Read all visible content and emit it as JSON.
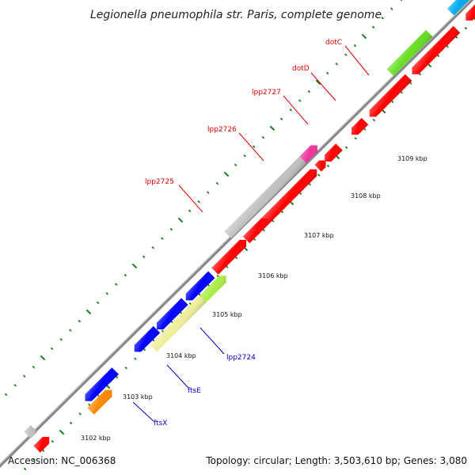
{
  "map": {
    "title": "Legionella pneumophila str. Paris, complete genome",
    "accession": "Accession: NC_006368",
    "topology": "Topology: circular; Length: 3,503,610 bp; Genes: 3,080"
  },
  "colors": {
    "backbone": "#808080",
    "tick": "#1a7a1a",
    "label_red": "#dd0000",
    "label_blue": "#0000cc",
    "gene_red": "#ff0000",
    "gene_blue": "#0000ff",
    "gene_grey": "#c0c0c0",
    "gene_magenta": "#ee3399",
    "gene_green": "#66dd22",
    "gene_lime": "#aaee44",
    "gene_khaki": "#eeee99",
    "gene_orange": "#ff8800",
    "gene_cyan": "#00aaee"
  },
  "kbp_labels": [
    "3102 kbp",
    "3103 kbp",
    "3104 kbp",
    "3105 kbp",
    "3106 kbp",
    "3107 kbp",
    "3108 kbp",
    "3109 kbp"
  ],
  "genes": [
    {
      "name": "dotC",
      "color": "red"
    },
    {
      "name": "dotD",
      "color": "red"
    },
    {
      "name": "lpp2727",
      "color": "red"
    },
    {
      "name": "lpp2726",
      "color": "red"
    },
    {
      "name": "lpp2725",
      "color": "red"
    },
    {
      "name": "lpp2724",
      "color": "blue"
    },
    {
      "name": "ftsE",
      "color": "blue"
    },
    {
      "name": "ftsX",
      "color": "blue"
    }
  ]
}
